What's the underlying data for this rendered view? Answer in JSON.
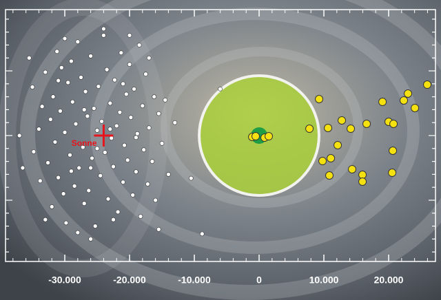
{
  "chart_data": {
    "type": "scatter",
    "xlim": [
      -39150,
      27230
    ],
    "ylim": [
      -19470,
      19470
    ],
    "xticks": [
      {
        "value": -30000,
        "label": "-30.000"
      },
      {
        "value": -20000,
        "label": "-20.000"
      },
      {
        "value": -10000,
        "label": "-10.000"
      },
      0,
      {
        "value": 10000,
        "label": "10.000"
      },
      {
        "value": 20000,
        "label": "20.000"
      }
    ],
    "x_minor_ticks": [
      -38000,
      -36000,
      -34000,
      -32000,
      -28000,
      -26000,
      -24000,
      -22000,
      -18000,
      -16000,
      -14000,
      -12000,
      -8000,
      -6000,
      -4000,
      -2000,
      2000,
      4000,
      6000,
      8000,
      12000,
      14000,
      16000,
      18000,
      22000,
      24000,
      26000
    ],
    "yticks": [
      -18000,
      -16000,
      -14000,
      -12000,
      -10000,
      -8000,
      -6000,
      -4000,
      -2000,
      0,
      2000,
      4000,
      6000,
      8000,
      10000,
      12000,
      14000,
      16000,
      18000
    ],
    "regions": [
      {
        "x": 0,
        "y": 0,
        "radius": 9250,
        "color": "#a9cf3a"
      },
      {
        "x": 0,
        "y": 0,
        "radius": 1280,
        "color": "#1f9e46"
      }
    ],
    "series": [
      {
        "color": "#ffffff",
        "x": [
          -35500,
          -35000,
          -34800,
          -34000,
          -33800,
          -33500,
          -33000,
          -32600,
          -32200,
          -32000,
          -31800,
          -31500,
          -31200,
          -31000,
          -30700,
          -30500,
          -30200,
          -30000,
          -29800,
          -29500,
          -29200,
          -29000,
          -28800,
          -28500,
          -28300,
          -28000,
          -27800,
          -27500,
          -27200,
          -27000,
          -26800,
          -26500,
          -26300,
          -26000,
          -25800,
          -25500,
          -25300,
          -25000,
          -24800,
          -24500,
          -24300,
          -24000,
          -23800,
          -23500,
          -23300,
          -23000,
          -22800,
          -22500,
          -22300,
          -22000,
          -21800,
          -21500,
          -21300,
          -21000,
          -20800,
          -20500,
          -20300,
          -20000,
          -19800,
          -19500,
          -19300,
          -19000,
          -18800,
          -18500,
          -18300,
          -18000,
          -17800,
          -17500,
          -17200,
          -17000,
          -16500,
          -16200,
          -16000,
          -15500,
          -15000,
          -14500,
          -14000,
          -13000,
          -10500,
          -6000,
          -8800,
          -26000,
          -33000,
          -28000,
          -24000,
          -20000,
          -22500,
          -30000,
          -27000,
          -25000,
          -23000,
          -21000,
          -29000,
          -31000,
          -26000,
          -19000,
          -17000,
          -37000,
          -36500,
          -15500
        ],
        "y": [
          12000,
          7500,
          -2500,
          1000,
          -7000,
          4500,
          9800,
          -4200,
          2500,
          -11000,
          6000,
          -1000,
          13000,
          -6500,
          3800,
          10500,
          -9000,
          500,
          -13500,
          8200,
          -3000,
          11500,
          5200,
          -7800,
          1800,
          14500,
          -5000,
          9000,
          -1800,
          -10500,
          6800,
          3000,
          -8500,
          12300,
          -3500,
          4200,
          -14000,
          800,
          7600,
          -6200,
          2200,
          15500,
          -2600,
          10200,
          -9800,
          5000,
          -400,
          -4800,
          8600,
          1500,
          -11800,
          3600,
          12800,
          -7200,
          -1500,
          6400,
          -3800,
          11000,
          2800,
          -9200,
          7200,
          -5600,
          300,
          14000,
          -12500,
          4600,
          -2200,
          9500,
          -7500,
          1200,
          -4000,
          6000,
          -10000,
          3400,
          -1200,
          5500,
          -6000,
          2000,
          -6600,
          7200,
          -15200,
          -16000,
          -13000,
          -15000,
          16500,
          15500,
          -13000,
          15000,
          4000,
          -2000,
          1000,
          8000,
          -5500,
          8500,
          -5000,
          -300,
          12000,
          0,
          -5000,
          -14500
        ]
      },
      {
        "color": "#f5e10f",
        "x": [
          9260,
          -1060,
          -530,
          850,
          1490,
          19050,
          22980,
          22340,
          24050,
          25960,
          12770,
          14150,
          16600,
          20000,
          20750,
          10640,
          7770,
          12130,
          9790,
          11070,
          20640,
          14360,
          10850,
          15960,
          15960,
          20540
        ],
        "y": [
          5640,
          -210,
          -110,
          -320,
          -110,
          5210,
          6490,
          5430,
          4260,
          7870,
          2340,
          1060,
          1810,
          2130,
          1810,
          1170,
          1060,
          -1490,
          -3940,
          -3510,
          -2340,
          -5210,
          -6170,
          -6070,
          -7130,
          -5750
        ]
      }
    ],
    "annotations": [
      {
        "text": "Sonne",
        "x": -24000,
        "y": 0,
        "color": "#e8141c"
      }
    ]
  }
}
